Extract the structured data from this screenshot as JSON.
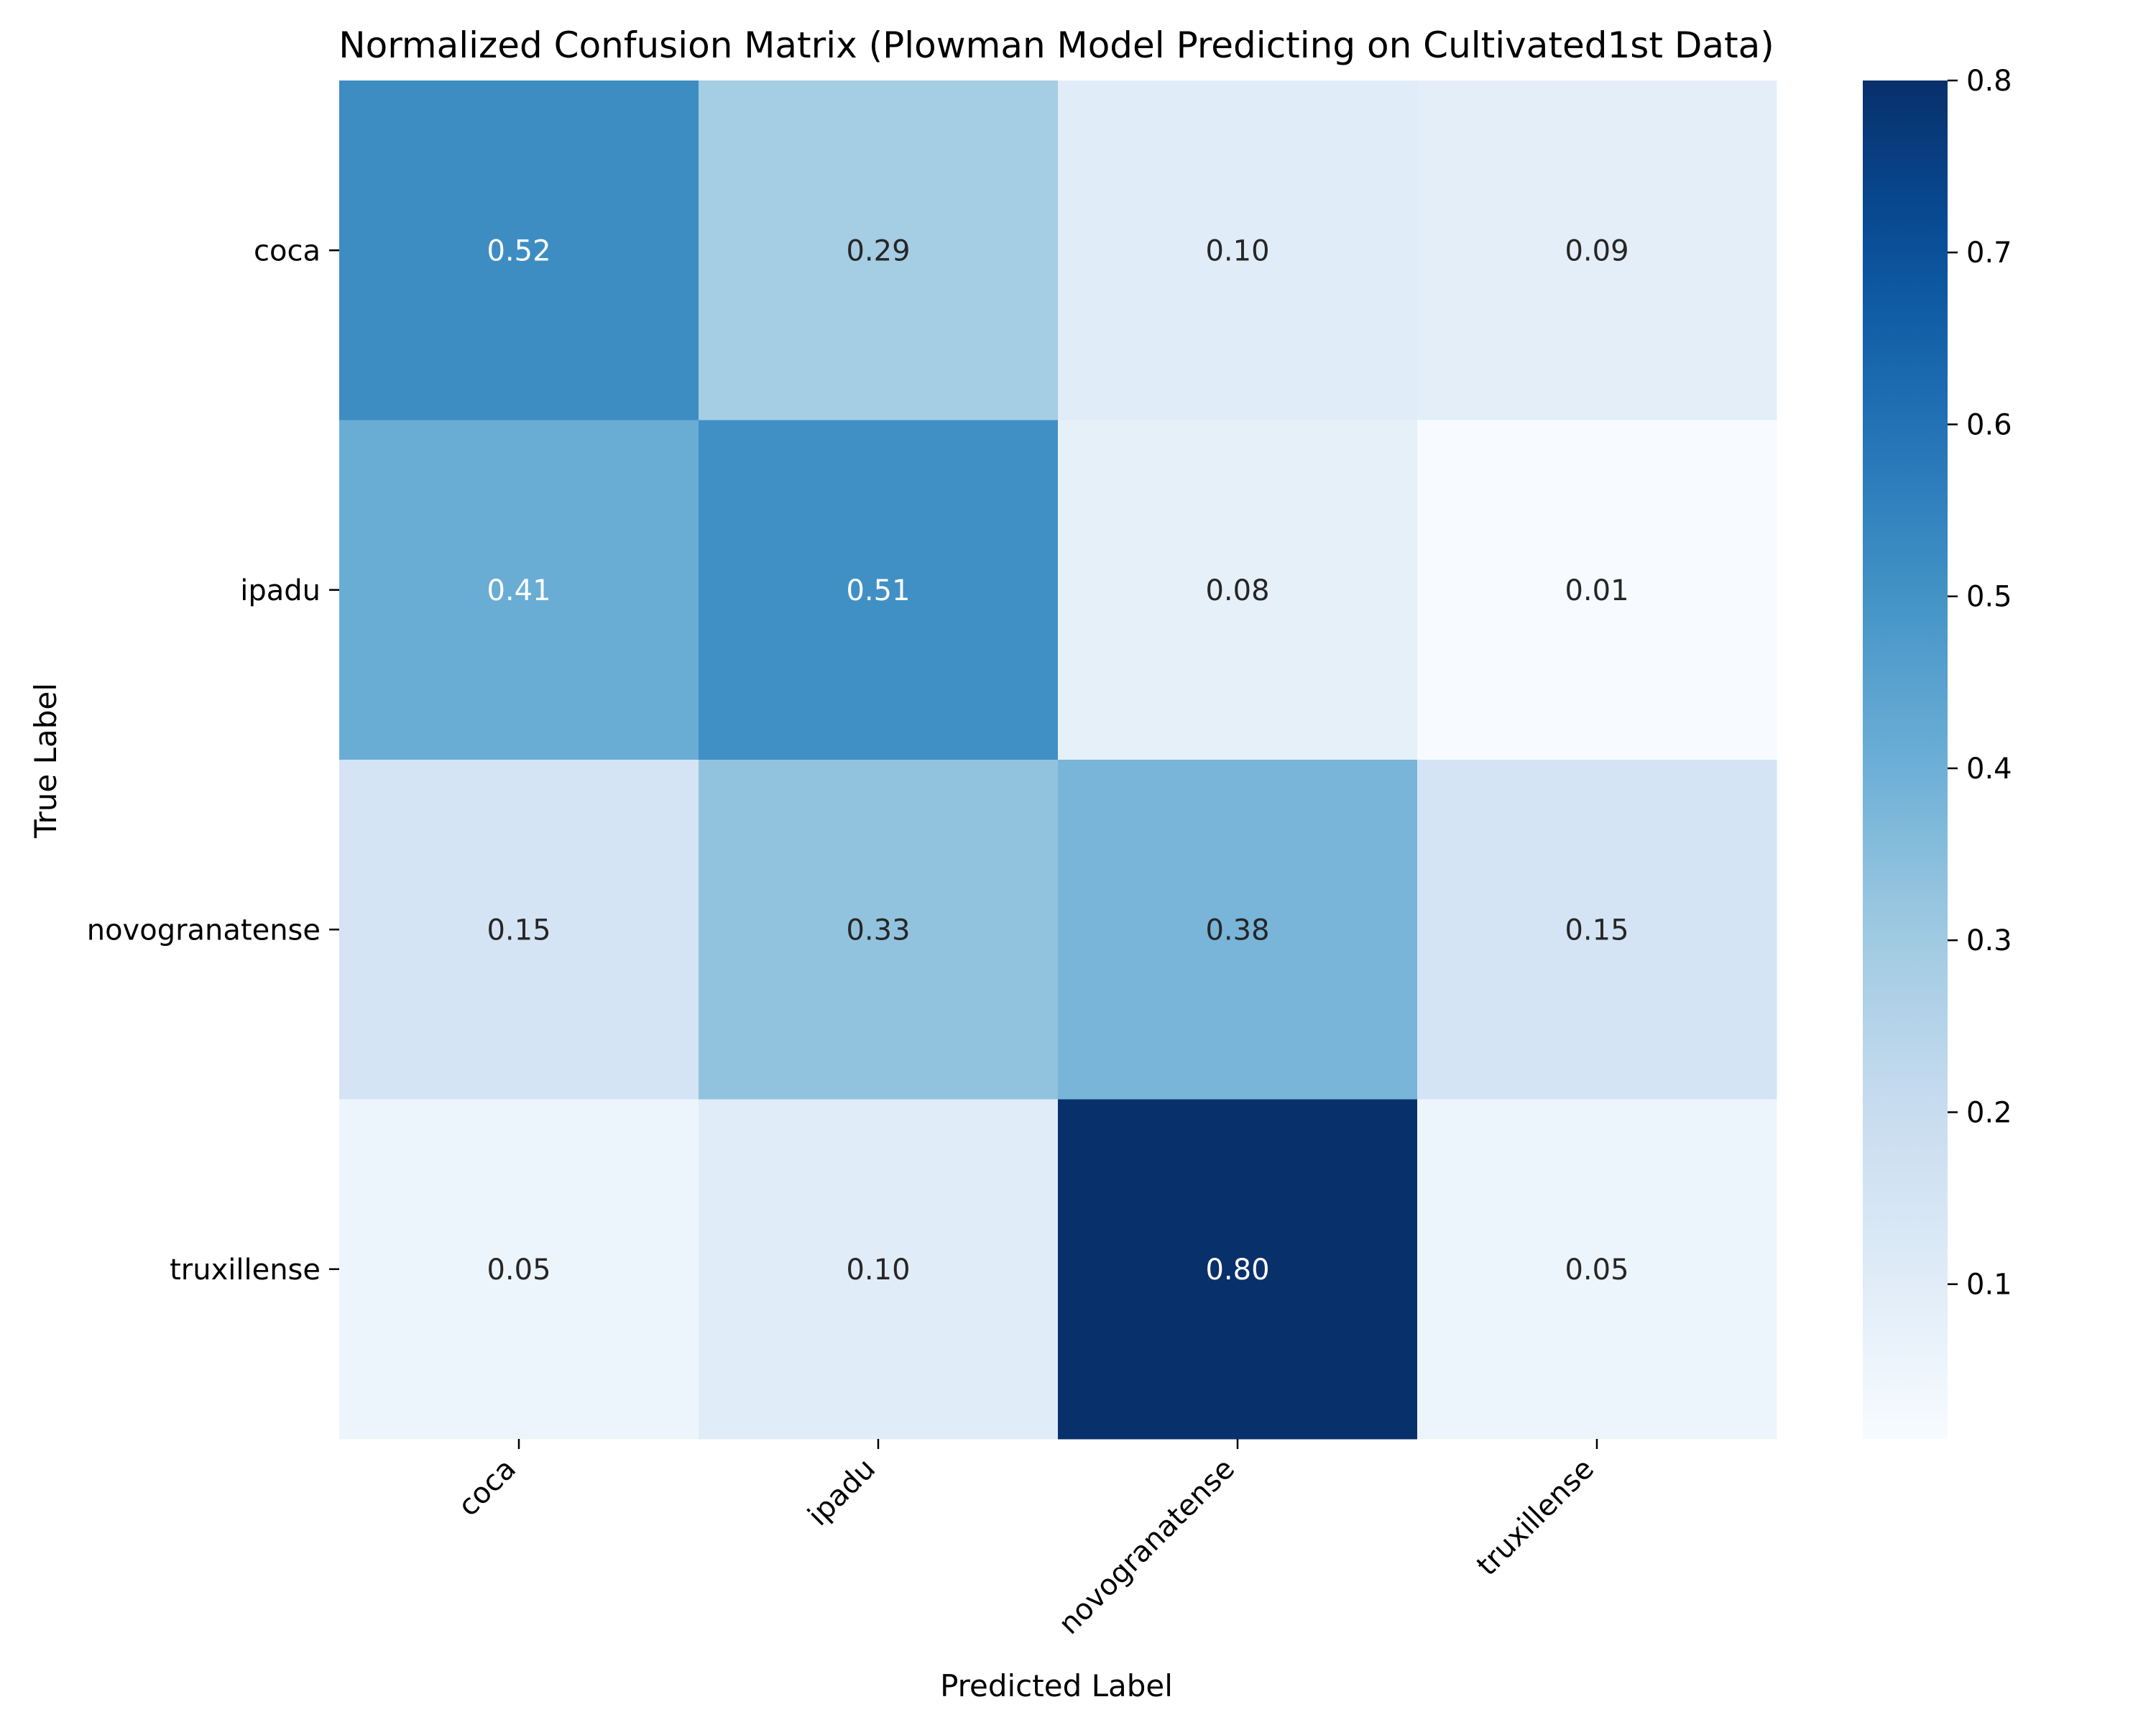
{
  "chart_data": {
    "type": "heatmap",
    "title": "Normalized Confusion Matrix (Plowman Model Predicting on Cultivated1st Data)",
    "xlabel": "Predicted Label",
    "ylabel": "True Label",
    "x_categories": [
      "coca",
      "ipadu",
      "novogranatense",
      "truxillense"
    ],
    "y_categories": [
      "coca",
      "ipadu",
      "novogranatense",
      "truxillense"
    ],
    "values": [
      [
        0.52,
        0.29,
        0.1,
        0.09
      ],
      [
        0.41,
        0.51,
        0.08,
        0.01
      ],
      [
        0.15,
        0.33,
        0.38,
        0.15
      ],
      [
        0.05,
        0.1,
        0.8,
        0.05
      ]
    ],
    "value_labels": [
      [
        "0.52",
        "0.29",
        "0.10",
        "0.09"
      ],
      [
        "0.41",
        "0.51",
        "0.08",
        "0.01"
      ],
      [
        "0.15",
        "0.33",
        "0.38",
        "0.15"
      ],
      [
        "0.05",
        "0.10",
        "0.80",
        "0.05"
      ]
    ],
    "colormap": "Blues",
    "colorbar": {
      "range": [
        0.01,
        0.8
      ],
      "ticks": [
        0.1,
        0.2,
        0.3,
        0.4,
        0.5,
        0.6,
        0.7,
        0.8
      ],
      "tick_labels": [
        "0.1",
        "0.2",
        "0.3",
        "0.4",
        "0.5",
        "0.6",
        "0.7",
        "0.8"
      ]
    },
    "text_color_dark": "#262626",
    "text_color_light": "#ffffff"
  }
}
